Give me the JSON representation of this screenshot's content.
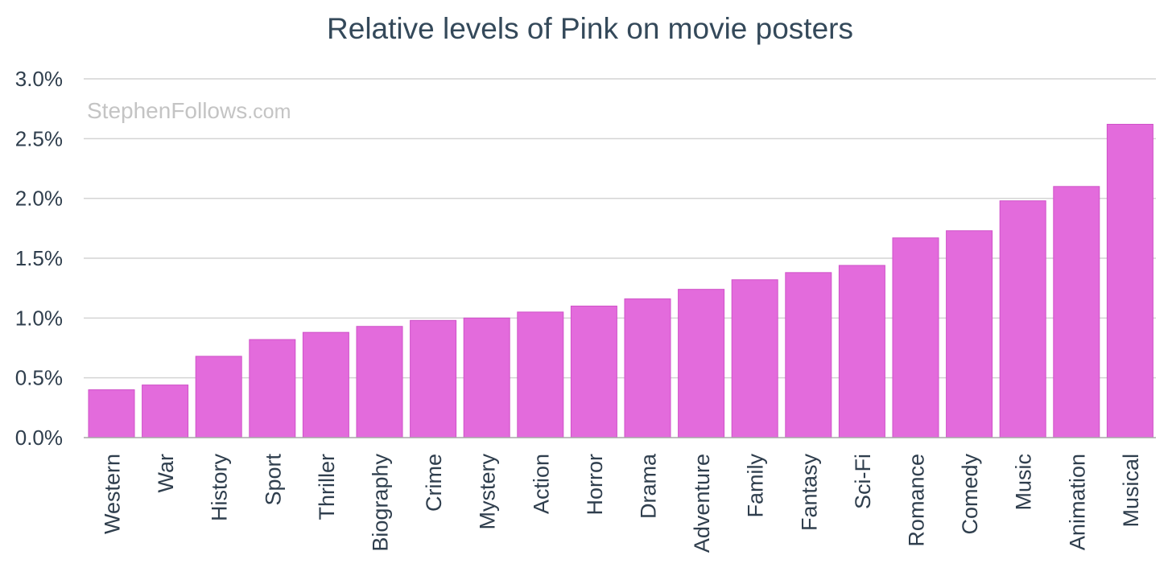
{
  "watermark": {
    "brand": "StephenFollows",
    "suffix": ".com"
  },
  "colors": {
    "bar": "#e36bdc",
    "bar_edge": "#cf52c8"
  },
  "chart_data": {
    "type": "bar",
    "title": "Relative levels of Pink on movie posters",
    "xlabel": "",
    "ylabel": "",
    "ylim": [
      0,
      3.0
    ],
    "y_ticks": [
      {
        "value": 0.0,
        "label": "0.0%"
      },
      {
        "value": 0.5,
        "label": "0.5%"
      },
      {
        "value": 1.0,
        "label": "1.0%"
      },
      {
        "value": 1.5,
        "label": "1.5%"
      },
      {
        "value": 2.0,
        "label": "2.0%"
      },
      {
        "value": 2.5,
        "label": "2.5%"
      },
      {
        "value": 3.0,
        "label": "3.0%"
      }
    ],
    "grid": true,
    "legend": "none",
    "categories": [
      "Western",
      "War",
      "History",
      "Sport",
      "Thriller",
      "Biography",
      "Crime",
      "Mystery",
      "Action",
      "Horror",
      "Drama",
      "Adventure",
      "Family",
      "Fantasy",
      "Sci-Fi",
      "Romance",
      "Comedy",
      "Music",
      "Animation",
      "Musical"
    ],
    "values": [
      0.4,
      0.44,
      0.68,
      0.82,
      0.88,
      0.93,
      0.98,
      1.0,
      1.05,
      1.1,
      1.16,
      1.24,
      1.32,
      1.38,
      1.44,
      1.67,
      1.73,
      1.98,
      2.1,
      2.62
    ]
  }
}
